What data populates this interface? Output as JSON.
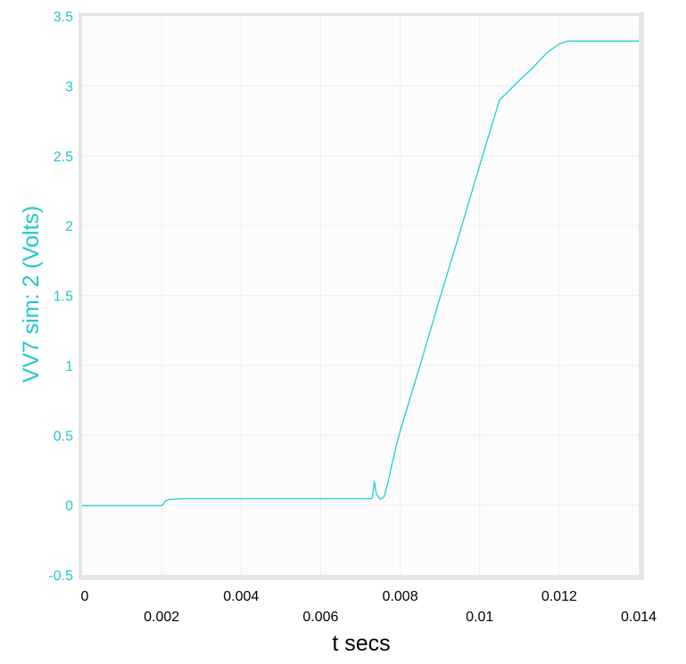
{
  "chart_data": {
    "type": "line",
    "title": "",
    "xlabel": "t secs",
    "ylabel": "VV7 sim:  2 (Volts)",
    "xlim": [
      0,
      0.014
    ],
    "ylim": [
      -0.5,
      3.5
    ],
    "grid": true,
    "y_ticks": [
      "-0.5",
      "0",
      "0.5",
      "1",
      "1.5",
      "2",
      "2.5",
      "3",
      "3.5"
    ],
    "x_ticks": [
      "0",
      "0.002",
      "0.004",
      "0.006",
      "0.008",
      "0.01",
      "0.012",
      "0.014"
    ],
    "colors": {
      "series": "#20d0d0",
      "y_text": "#20c8c8",
      "x_text": "#000000",
      "frame": "#e6e6e6",
      "grid": "#eeeeee",
      "plot_bg": "#fcfcfc"
    },
    "series": [
      {
        "x": [
          0,
          0.0005,
          0.001,
          0.0015,
          0.002,
          0.00205,
          0.0021,
          0.0022,
          0.0025,
          0.003,
          0.004,
          0.005,
          0.006,
          0.007,
          0.0072,
          0.00725,
          0.0073,
          0.00735,
          0.0074,
          0.0075,
          0.0076,
          0.0077,
          0.0078,
          0.0079,
          0.008,
          0.0085,
          0.009,
          0.0095,
          0.01,
          0.0105,
          0.011,
          0.0113,
          0.0115,
          0.0117,
          0.0119,
          0.012,
          0.0121,
          0.0122,
          0.0123,
          0.0125,
          0.013,
          0.0135,
          0.014
        ],
        "y": [
          -0.005,
          -0.005,
          -0.005,
          -0.005,
          -0.005,
          0.01,
          0.03,
          0.04,
          0.045,
          0.045,
          0.045,
          0.045,
          0.045,
          0.045,
          0.045,
          0.045,
          0.05,
          0.17,
          0.08,
          0.04,
          0.06,
          0.17,
          0.3,
          0.42,
          0.53,
          1.0,
          1.48,
          1.95,
          2.43,
          2.9,
          3.04,
          3.12,
          3.18,
          3.24,
          3.28,
          3.3,
          3.31,
          3.32,
          3.32,
          3.32,
          3.32,
          3.32,
          3.32
        ]
      }
    ]
  }
}
